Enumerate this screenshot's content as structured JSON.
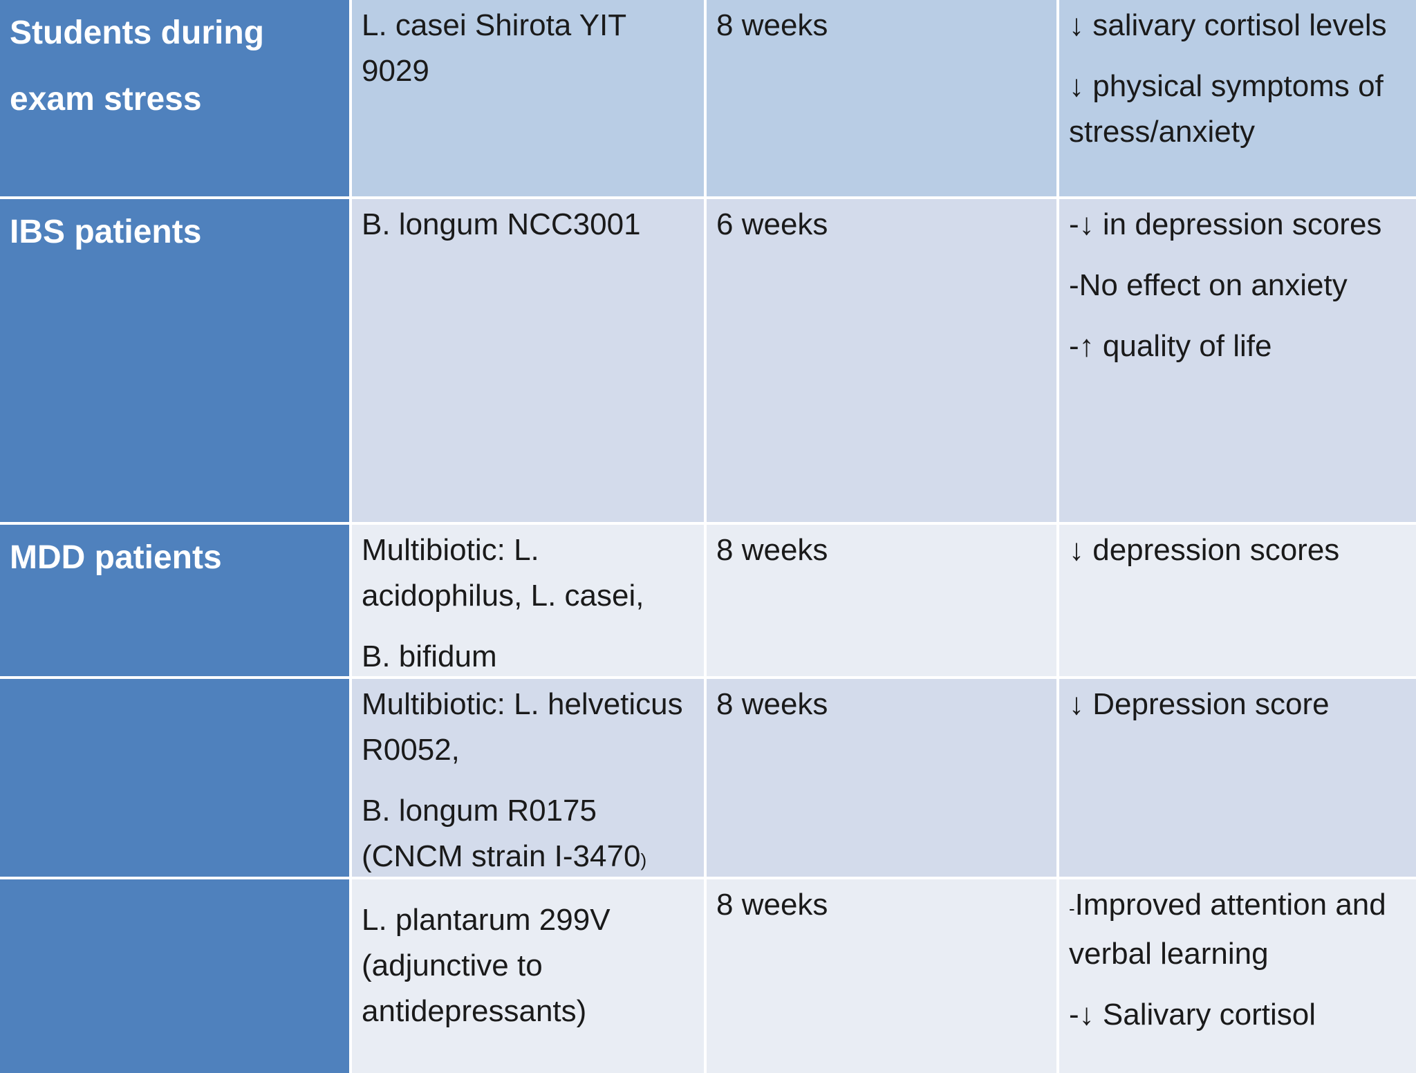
{
  "rows": [
    {
      "population": "Students during exam stress",
      "strain": [
        "L. casei Shirota YIT 9029"
      ],
      "duration": "8 weeks",
      "outcomes": [
        "↓ salivary cortisol levels",
        "↓ physical symptoms of stress/anxiety"
      ]
    },
    {
      "population": "IBS patients",
      "strain": [
        "B. longum NCC3001"
      ],
      "duration": "6 weeks",
      "outcomes": [
        "-↓ in depression scores",
        "-No effect on anxiety",
        "-↑ quality of life"
      ]
    },
    {
      "population": "MDD patients",
      "strain": [
        "Multibiotic: L. acidophilus, L. casei,",
        "B. bifidum"
      ],
      "duration": "8 weeks",
      "outcomes": [
        "↓ depression scores"
      ]
    },
    {
      "population": "",
      "strain": [
        "Multibiotic: L. helveticus R0052,",
        "B. longum R0175 (CNCM strain I-3470",
        ")"
      ],
      "duration": "8 weeks",
      "outcomes": [
        "↓ Depression score"
      ]
    },
    {
      "population": "",
      "strain": [
        "L. plantarum 299V (adjunctive to antidepressants)"
      ],
      "duration": "8 weeks",
      "outcomes": [
        "-",
        "Improved attention and verbal learning",
        "-↓ Salivary cortisol"
      ]
    }
  ],
  "colors": {
    "header_blue": "#4f81bd",
    "row_light_1": "#b9cde5",
    "row_light_2": "#d3dbeb",
    "row_light_3": "#e9edf4"
  }
}
